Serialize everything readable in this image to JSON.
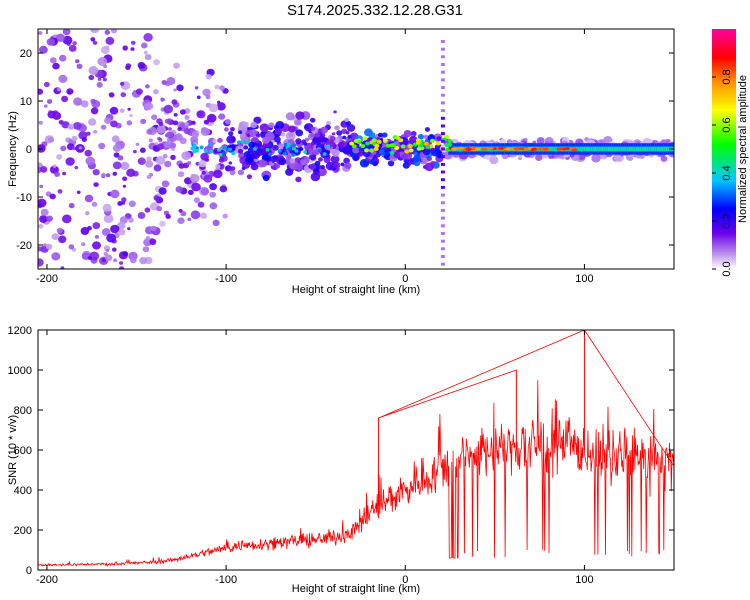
{
  "title": "S174.2025.332.12.28.G31",
  "chart_data": [
    {
      "type": "heatmap",
      "xlabel": "Height of straight line (km)",
      "ylabel": "Frequency (Hz)",
      "xlim": [
        -205,
        150
      ],
      "ylim": [
        -25,
        25
      ],
      "x_ticks": [
        -200,
        -100,
        0,
        100
      ],
      "y_ticks": [
        -20,
        -10,
        0,
        10,
        20
      ],
      "grid": false,
      "colorbar": {
        "label": "Normalized spectral amplitude",
        "range": [
          0,
          1
        ],
        "ticks": [
          "0.0",
          "0.2",
          "0.4",
          "0.6",
          "0.8"
        ],
        "colormap": "rainbow (white-violet-blue-cyan-green-yellow-orange-red-magenta)"
      },
      "regions": [
        {
          "x_range": [
            -205,
            -140
          ],
          "freq_spread": [
            -25,
            25
          ],
          "amplitude": "low, scattered"
        },
        {
          "x_range": [
            -140,
            -30
          ],
          "freq_spread": [
            -8,
            6
          ],
          "amplitude": "low-moderate"
        },
        {
          "x_range": [
            -30,
            20
          ],
          "freq_spread": [
            -3,
            4
          ],
          "amplitude": "moderate-high"
        },
        {
          "x_range": [
            25,
            150
          ],
          "freq_spread": [
            -1,
            1
          ],
          "amplitude": "high near 0 Hz"
        }
      ],
      "vertical_artifact_x": 21
    },
    {
      "type": "line",
      "xlabel": "Height of straight line (km)",
      "ylabel": "SNR (10 * v/v)",
      "xlim": [
        -205,
        150
      ],
      "ylim": [
        0,
        1200
      ],
      "x_ticks": [
        -200,
        -100,
        0,
        100
      ],
      "y_ticks": [
        0,
        200,
        400,
        600,
        800,
        1000,
        1200
      ],
      "grid": false,
      "series": [
        {
          "color": "#ff0000",
          "x": [
            -205,
            -180,
            -160,
            -140,
            -130,
            -120,
            -110,
            -100,
            -90,
            -80,
            -70,
            -60,
            -50,
            -40,
            -30,
            -25,
            -20,
            -15,
            -10,
            -5,
            0,
            5,
            10,
            15,
            20,
            25,
            30,
            40,
            50,
            60,
            70,
            80,
            90,
            100,
            110,
            120,
            130,
            140,
            150
          ],
          "values": [
            25,
            28,
            30,
            40,
            50,
            70,
            90,
            110,
            125,
            130,
            140,
            145,
            150,
            165,
            190,
            230,
            280,
            320,
            350,
            380,
            400,
            430,
            460,
            480,
            500,
            530,
            560,
            580,
            600,
            610,
            620,
            620,
            610,
            600,
            580,
            565,
            555,
            545,
            530
          ]
        }
      ],
      "annotations": [
        {
          "x": 100,
          "value": 1200,
          "note": "spike"
        },
        {
          "x": -15,
          "value": 760,
          "note": "spike"
        },
        {
          "x": 62,
          "value": 1000,
          "note": "spike"
        }
      ]
    }
  ]
}
